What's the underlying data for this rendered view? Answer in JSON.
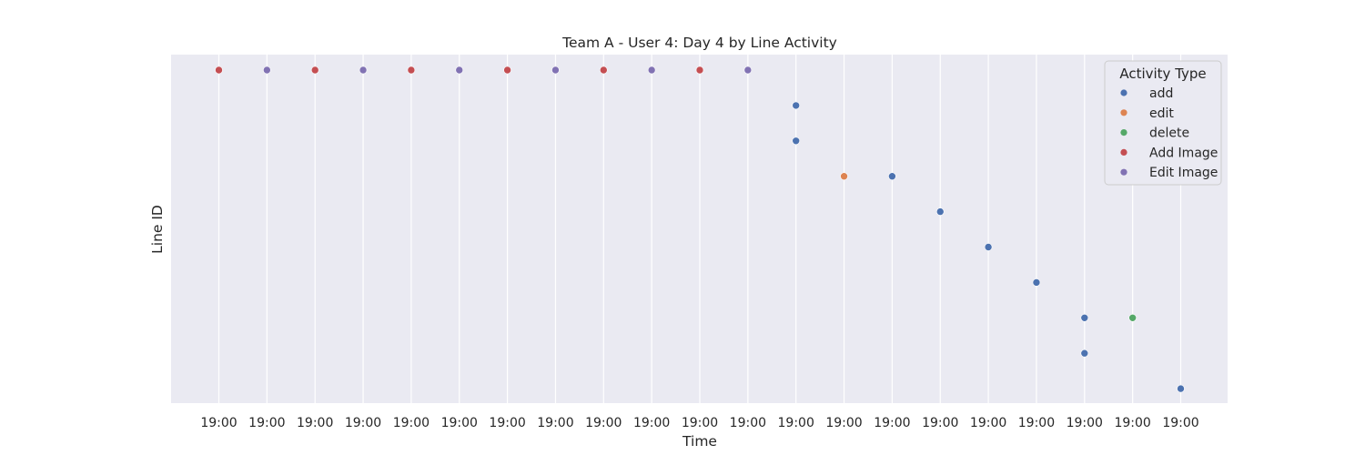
{
  "chart_data": {
    "type": "scatter",
    "title": "Team A - User 4: Day 4 by Line Activity",
    "xlabel": "Time",
    "ylabel": "Line ID",
    "x_ticks": [
      "19:00",
      "19:00",
      "19:00",
      "19:00",
      "19:00",
      "19:00",
      "19:00",
      "19:00",
      "19:00",
      "19:00",
      "19:00",
      "19:00",
      "19:00",
      "19:00",
      "19:00",
      "19:00",
      "19:00",
      "19:00",
      "19:00",
      "19:00",
      "19:00"
    ],
    "grid": true,
    "legend": {
      "title": "Activity Type",
      "placement": "top-right",
      "entries": [
        {
          "name": "add",
          "color": "#4c72b0"
        },
        {
          "name": "edit",
          "color": "#dd8452"
        },
        {
          "name": "delete",
          "color": "#55a868"
        },
        {
          "name": "Add Image",
          "color": "#c44e52"
        },
        {
          "name": "Edit Image",
          "color": "#8172b3"
        }
      ]
    },
    "y_levels": 10,
    "points": [
      {
        "x": 0,
        "y": 0,
        "type": "Add Image"
      },
      {
        "x": 1,
        "y": 0,
        "type": "Edit Image"
      },
      {
        "x": 2,
        "y": 0,
        "type": "Add Image"
      },
      {
        "x": 3,
        "y": 0,
        "type": "Edit Image"
      },
      {
        "x": 4,
        "y": 0,
        "type": "Add Image"
      },
      {
        "x": 5,
        "y": 0,
        "type": "Edit Image"
      },
      {
        "x": 6,
        "y": 0,
        "type": "Add Image"
      },
      {
        "x": 7,
        "y": 0,
        "type": "Edit Image"
      },
      {
        "x": 8,
        "y": 0,
        "type": "Add Image"
      },
      {
        "x": 9,
        "y": 0,
        "type": "Edit Image"
      },
      {
        "x": 10,
        "y": 0,
        "type": "Add Image"
      },
      {
        "x": 11,
        "y": 0,
        "type": "Edit Image"
      },
      {
        "x": 12,
        "y": 1,
        "type": "add"
      },
      {
        "x": 12,
        "y": 2,
        "type": "add"
      },
      {
        "x": 13,
        "y": 3,
        "type": "edit"
      },
      {
        "x": 14,
        "y": 3,
        "type": "add"
      },
      {
        "x": 15,
        "y": 4,
        "type": "add"
      },
      {
        "x": 16,
        "y": 5,
        "type": "add"
      },
      {
        "x": 17,
        "y": 6,
        "type": "add"
      },
      {
        "x": 18,
        "y": 7,
        "type": "add"
      },
      {
        "x": 19,
        "y": 7,
        "type": "delete"
      },
      {
        "x": 18,
        "y": 8,
        "type": "add"
      },
      {
        "x": 20,
        "y": 9,
        "type": "add"
      }
    ]
  }
}
